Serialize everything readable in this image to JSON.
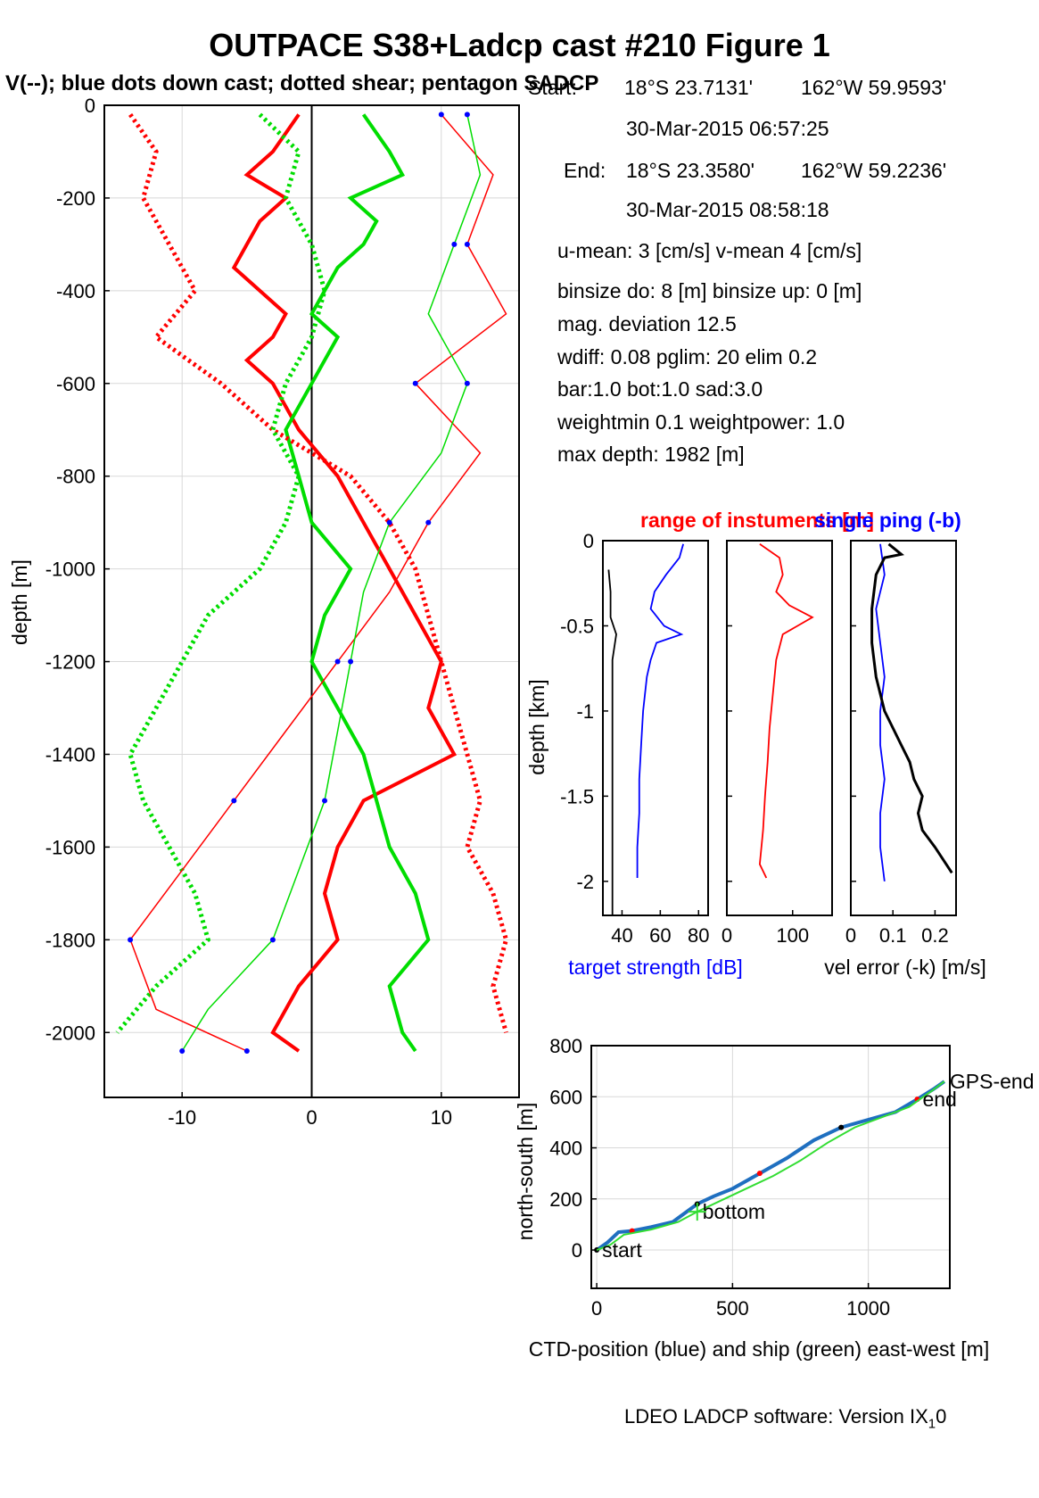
{
  "title": "OUTPACE S38+Ladcp cast #210  Figure 1",
  "subtitle": "V(--); blue dots down cast; dotted shear; pentagon SADCP",
  "info": {
    "start_label": "Start:",
    "start_lat": "18°S 23.7131'",
    "start_lon": "162°W 59.9593'",
    "start_time": "30-Mar-2015 06:57:25",
    "end_label": "End:",
    "end_lat": "18°S 23.3580'",
    "end_lon": "162°W 59.2236'",
    "end_time": "30-Mar-2015 08:58:18",
    "u_mean": "u-mean:   3 [cm/s]    v-mean   4 [cm/s]",
    "binsize": "binsize do: 8 [m]  binsize up:  0 [m]",
    "mag_dev": "mag. deviation 12.5",
    "wdiff": "wdiff: 0.08  pglim: 20  elim 0.2",
    "bar": "  bar:1.0 bot:1.0 sad:3.0",
    "weight": "weightmin 0.1  weightpower: 1.0",
    "max_depth": "max depth: 1982 [m]"
  },
  "footer": {
    "text": "LDEO LADCP software: Version IX",
    "sub": "1",
    "tail": "0"
  },
  "colors": {
    "u": "#ff0000",
    "v": "#00dd00",
    "blue": "#0000ff",
    "black": "#000000",
    "ctd": "#1f6fc0",
    "ship": "#33dd33"
  },
  "chart_data": [
    {
      "type": "line",
      "name": "velocity profiles",
      "title": "",
      "xlabel": "",
      "ylabel": "depth [m]",
      "xlim": [
        -16,
        16
      ],
      "ylim": [
        -2140,
        0
      ],
      "xticks": [
        -10,
        0,
        10
      ],
      "yticks": [
        0,
        -200,
        -400,
        -600,
        -800,
        -1000,
        -1200,
        -1400,
        -1600,
        -1800,
        -2000
      ],
      "grid": true,
      "series": [
        {
          "key": "u_total",
          "color": "red",
          "style": "solid",
          "depth": [
            -20,
            -100,
            -150,
            -200,
            -250,
            -300,
            -350,
            -400,
            -450,
            -500,
            -550,
            -600,
            -700,
            -800,
            -900,
            -1000,
            -1100,
            -1200,
            -1300,
            -1400,
            -1500,
            -1600,
            -1700,
            -1800,
            -1900,
            -2000,
            -2040
          ],
          "values": [
            -1,
            -3,
            -5,
            -2,
            -4,
            -5,
            -6,
            -4,
            -2,
            -3,
            -5,
            -3,
            -1,
            2,
            4,
            6,
            8,
            10,
            9,
            11,
            4,
            2,
            1,
            2,
            -1,
            -3,
            -1
          ]
        },
        {
          "key": "v_total",
          "color": "green",
          "style": "solid",
          "depth": [
            -20,
            -100,
            -150,
            -200,
            -250,
            -300,
            -350,
            -400,
            -450,
            -500,
            -550,
            -600,
            -700,
            -800,
            -900,
            -1000,
            -1100,
            -1200,
            -1300,
            -1400,
            -1500,
            -1600,
            -1700,
            -1800,
            -1900,
            -2000,
            -2040
          ],
          "values": [
            4,
            6,
            7,
            3,
            5,
            4,
            2,
            1,
            0,
            2,
            1,
            0,
            -2,
            -1,
            0,
            3,
            1,
            0,
            2,
            4,
            5,
            6,
            8,
            9,
            6,
            7,
            8
          ]
        },
        {
          "key": "u_shear",
          "color": "red",
          "style": "dotted",
          "depth": [
            -20,
            -100,
            -200,
            -300,
            -400,
            -500,
            -600,
            -700,
            -800,
            -900,
            -1000,
            -1100,
            -1200,
            -1300,
            -1400,
            -1500,
            -1600,
            -1700,
            -1800,
            -1900,
            -2000
          ],
          "values": [
            -14,
            -12,
            -13,
            -11,
            -9,
            -12,
            -7,
            -3,
            3,
            6,
            8,
            9,
            10,
            11,
            12,
            13,
            12,
            14,
            15,
            14,
            15
          ]
        },
        {
          "key": "v_shear",
          "color": "green",
          "style": "dotted",
          "depth": [
            -20,
            -100,
            -200,
            -300,
            -400,
            -500,
            -600,
            -700,
            -800,
            -900,
            -1000,
            -1100,
            -1200,
            -1300,
            -1400,
            -1500,
            -1600,
            -1700,
            -1800,
            -1900,
            -2000
          ],
          "values": [
            -4,
            -1,
            -2,
            0,
            1,
            0,
            -2,
            -3,
            -1,
            -2,
            -4,
            -8,
            -10,
            -12,
            -14,
            -13,
            -11,
            -9,
            -8,
            -12,
            -15
          ]
        },
        {
          "key": "u_down",
          "color": "red",
          "style": "thin",
          "depth": [
            -20,
            -150,
            -300,
            -450,
            -600,
            -750,
            -900,
            -1050,
            -1200,
            -1350,
            -1500,
            -1650,
            -1800,
            -1950,
            -2040
          ],
          "values": [
            10,
            14,
            12,
            15,
            8,
            13,
            9,
            6,
            2,
            -2,
            -6,
            -10,
            -14,
            -12,
            -5
          ]
        },
        {
          "key": "v_down",
          "color": "green",
          "style": "thin",
          "depth": [
            -20,
            -150,
            -300,
            -450,
            -600,
            -750,
            -900,
            -1050,
            -1200,
            -1350,
            -1500,
            -1650,
            -1800,
            -1950,
            -2040
          ],
          "values": [
            12,
            13,
            11,
            9,
            12,
            10,
            6,
            4,
            3,
            2,
            1,
            -1,
            -3,
            -8,
            -10
          ]
        }
      ]
    },
    {
      "type": "line",
      "name": "target strength",
      "title": "range of instuments [m]",
      "xlabel": "target strength [dB]",
      "ylabel": "depth [km]",
      "xlim": [
        30,
        85
      ],
      "ylim": [
        -2.2,
        0
      ],
      "xticks": [
        40,
        60,
        80
      ],
      "yticks": [
        0,
        -0.5,
        -1,
        -1.5,
        -2
      ],
      "series": [
        {
          "key": "ts",
          "color": "blue",
          "depth": [
            -0.02,
            -0.1,
            -0.2,
            -0.3,
            -0.4,
            -0.5,
            -0.55,
            -0.6,
            -0.7,
            -0.8,
            -1.0,
            -1.2,
            -1.4,
            -1.6,
            -1.8,
            -1.98
          ],
          "values": [
            72,
            70,
            63,
            57,
            55,
            62,
            71,
            58,
            55,
            53,
            51,
            50,
            49,
            49,
            48,
            48
          ]
        },
        {
          "key": "ts_ref",
          "color": "black",
          "depth": [
            -0.17,
            -0.3,
            -0.45,
            -0.55,
            -0.7,
            -1.0,
            -1.5,
            -2.0,
            -2.2
          ],
          "values": [
            33,
            34,
            34,
            37,
            35,
            35,
            35,
            35,
            35
          ]
        }
      ]
    },
    {
      "type": "line",
      "name": "range of instruments",
      "xlabel": "",
      "ylabel": "",
      "xlim": [
        0,
        160
      ],
      "ylim": [
        -2.2,
        0
      ],
      "xticks": [
        0,
        100
      ],
      "series": [
        {
          "key": "range",
          "color": "red",
          "depth": [
            -0.02,
            -0.1,
            -0.2,
            -0.3,
            -0.38,
            -0.45,
            -0.55,
            -0.7,
            -0.9,
            -1.1,
            -1.3,
            -1.5,
            -1.7,
            -1.9,
            -1.98
          ],
          "values": [
            50,
            80,
            85,
            75,
            95,
            130,
            85,
            75,
            70,
            65,
            62,
            58,
            55,
            50,
            60
          ]
        }
      ]
    },
    {
      "type": "line",
      "name": "velocity error",
      "title": "single ping (-b)",
      "xlabel": "vel error (-k) [m/s]",
      "ylabel": "",
      "xlim": [
        0,
        0.25
      ],
      "ylim": [
        -2.2,
        0
      ],
      "xticks": [
        0,
        0.1,
        0.2
      ],
      "series": [
        {
          "key": "single_ping",
          "color": "blue",
          "depth": [
            -0.02,
            -0.2,
            -0.4,
            -0.6,
            -0.8,
            -1.0,
            -1.2,
            -1.4,
            -1.6,
            -1.8,
            -2.0
          ],
          "values": [
            0.07,
            0.08,
            0.06,
            0.07,
            0.08,
            0.07,
            0.07,
            0.08,
            0.07,
            0.07,
            0.08
          ]
        },
        {
          "key": "vel_error",
          "color": "black",
          "depth": [
            -0.02,
            -0.08,
            -0.1,
            -0.2,
            -0.4,
            -0.6,
            -0.8,
            -1.0,
            -1.1,
            -1.2,
            -1.3,
            -1.4,
            -1.5,
            -1.6,
            -1.7,
            -1.8,
            -1.95
          ],
          "values": [
            0.09,
            0.12,
            0.08,
            0.06,
            0.05,
            0.05,
            0.06,
            0.08,
            0.1,
            0.12,
            0.14,
            0.15,
            0.17,
            0.16,
            0.17,
            0.2,
            0.24
          ]
        }
      ]
    },
    {
      "type": "line",
      "name": "position",
      "title": "",
      "xlabel": "CTD-position (blue) and ship (green) east-west [m]",
      "ylabel": "north-south [m]",
      "xlim": [
        -20,
        1300
      ],
      "ylim": [
        -150,
        800
      ],
      "xticks": [
        0,
        500,
        1000
      ],
      "yticks": [
        0,
        200,
        400,
        600,
        800
      ],
      "grid": true,
      "series": [
        {
          "key": "ctd",
          "color": "blue",
          "x": [
            0,
            40,
            80,
            130,
            200,
            280,
            370,
            430,
            500,
            600,
            700,
            800,
            900,
            1000,
            1100,
            1180,
            1240,
            1280
          ],
          "y": [
            0,
            30,
            70,
            75,
            90,
            110,
            180,
            210,
            240,
            300,
            360,
            430,
            480,
            510,
            540,
            590,
            630,
            660
          ]
        },
        {
          "key": "ship",
          "color": "green",
          "x": [
            0,
            50,
            100,
            200,
            300,
            370,
            450,
            550,
            650,
            750,
            850,
            950,
            1050,
            1150,
            1230,
            1280
          ],
          "y": [
            0,
            20,
            60,
            80,
            110,
            150,
            190,
            240,
            290,
            350,
            420,
            480,
            520,
            560,
            620,
            660
          ]
        }
      ],
      "annotations": [
        {
          "text": "start",
          "x": 0,
          "y": 0
        },
        {
          "text": "bottom",
          "x": 370,
          "y": 150
        },
        {
          "text": "end",
          "x": 1180,
          "y": 590
        },
        {
          "text": "GPS-end",
          "x": 1280,
          "y": 660
        }
      ]
    }
  ]
}
